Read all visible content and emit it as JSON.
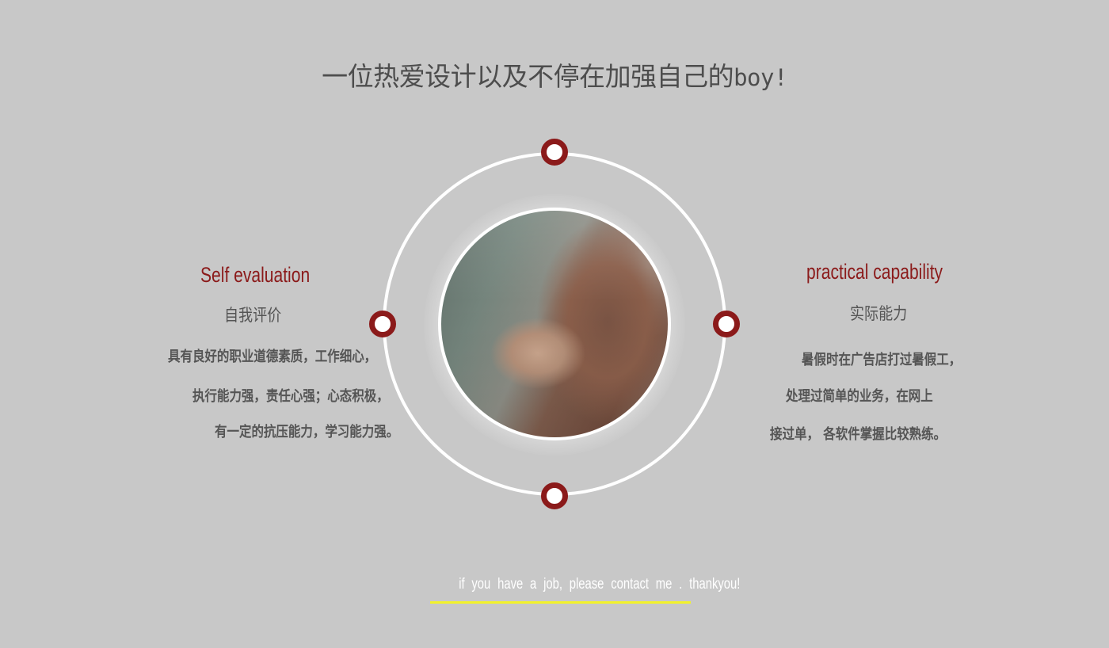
{
  "headline": {
    "cjk": "一位热爱设计以及不停在加强自己的",
    "latin": "boy!"
  },
  "left_section": {
    "title": "Self evaluation",
    "subtitle": "自我评价",
    "lines": [
      "具有良好的职业道德素质，工作细心，",
      "执行能力强，责任心强；心态积极，",
      "有一定的抗压能力，学习能力强。"
    ]
  },
  "right_section": {
    "title": "practical capability",
    "subtitle": "实际能力",
    "lines": [
      "暑假时在广告店打过暑假工，",
      "处理过简单的业务，在网上",
      "接过单， 各软件掌握比较熟练。"
    ]
  },
  "footer": {
    "text": "if you have a job, please contact me . thankyou!"
  },
  "colors": {
    "background": "#c8c8c8",
    "accent": "#8b1a1a",
    "ring": "#ffffff",
    "footer_underline": "#f2f22a",
    "body_text": "#555555"
  },
  "icons": {
    "orbit_marker": "ring-dot-icon",
    "profile_photo": "avatar-photo"
  }
}
